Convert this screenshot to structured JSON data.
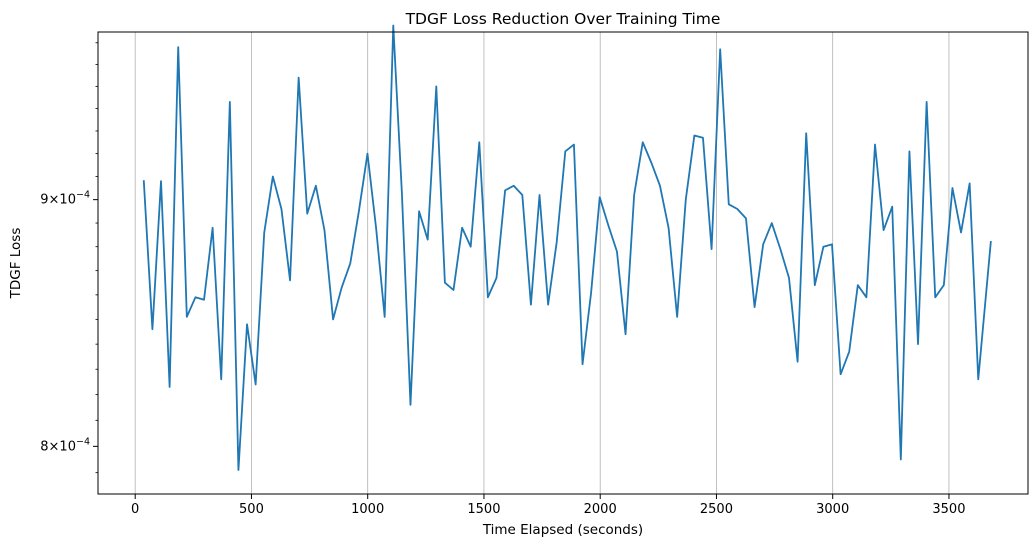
{
  "chart_data": {
    "type": "line",
    "title": "TDGF Loss Reduction Over Training Time",
    "xlabel": "Time Elapsed (seconds)",
    "ylabel": "TDGF Loss",
    "yscale": "log",
    "xlim": [
      -160,
      3840
    ],
    "ylim": [
      0.000782,
      0.000975
    ],
    "grid": "vertical",
    "line_color": "#1f77b4",
    "x_ticks": [
      {
        "value": 0,
        "label": "0"
      },
      {
        "value": 500,
        "label": "500"
      },
      {
        "value": 1000,
        "label": "1000"
      },
      {
        "value": 1500,
        "label": "1500"
      },
      {
        "value": 2000,
        "label": "2000"
      },
      {
        "value": 2500,
        "label": "2500"
      },
      {
        "value": 3000,
        "label": "3000"
      },
      {
        "value": 3500,
        "label": "3500"
      }
    ],
    "y_ticks": [
      {
        "value": 0.0008,
        "mantissa": "8",
        "base": "10",
        "exponent": "−4"
      },
      {
        "value": 0.0009,
        "mantissa": "9",
        "base": "10",
        "exponent": "−4"
      }
    ],
    "series": [
      {
        "x": [
          37,
          74,
          111,
          148,
          185,
          222,
          259,
          296,
          333,
          370,
          407,
          444,
          481,
          518,
          555,
          592,
          629,
          666,
          703,
          740,
          777,
          814,
          851,
          888,
          925,
          962,
          999,
          1036,
          1073,
          1110,
          1147,
          1184,
          1221,
          1258,
          1295,
          1332,
          1369,
          1406,
          1443,
          1480,
          1517,
          1554,
          1591,
          1628,
          1665,
          1702,
          1739,
          1776,
          1813,
          1850,
          1887,
          1924,
          1961,
          1998,
          2035,
          2072,
          2109,
          2146,
          2183,
          2220,
          2257,
          2294,
          2331,
          2368,
          2405,
          2442,
          2479,
          2516,
          2553,
          2590,
          2627,
          2664,
          2701,
          2738,
          2775,
          2812,
          2849,
          2886,
          2923,
          2960,
          2997,
          3034,
          3071,
          3108,
          3145,
          3182,
          3219,
          3256,
          3293,
          3330,
          3367,
          3404,
          3441,
          3478,
          3515,
          3552,
          3589,
          3626,
          3663,
          3680
        ],
        "y": [
          0.000908,
          0.000846,
          0.000908,
          0.000823,
          0.000968,
          0.000851,
          0.000859,
          0.000858,
          0.000888,
          0.000826,
          0.000943,
          0.000791,
          0.000848,
          0.000824,
          0.000886,
          0.00091,
          0.000896,
          0.000866,
          0.000954,
          0.000894,
          0.000906,
          0.000887,
          0.00085,
          0.000863,
          0.000873,
          0.000895,
          0.00092,
          0.000888,
          0.000851,
          0.000978,
          0.000903,
          0.000816,
          0.000895,
          0.000883,
          0.00095,
          0.000865,
          0.000862,
          0.000888,
          0.00088,
          0.000925,
          0.000859,
          0.000867,
          0.000904,
          0.000906,
          0.000902,
          0.000856,
          0.000902,
          0.000856,
          0.000882,
          0.000921,
          0.000924,
          0.000832,
          0.000861,
          0.000901,
          0.000889,
          0.000878,
          0.000844,
          0.000902,
          0.000925,
          0.000916,
          0.000906,
          0.000888,
          0.000851,
          0.0009,
          0.000928,
          0.000927,
          0.000879,
          0.000967,
          0.000898,
          0.000896,
          0.000892,
          0.000855,
          0.000881,
          0.00089,
          0.000879,
          0.000867,
          0.000833,
          0.000929,
          0.000864,
          0.00088,
          0.000881,
          0.000828,
          0.000837,
          0.000864,
          0.000859,
          0.000924,
          0.000887,
          0.000897,
          0.000795,
          0.000921,
          0.00084,
          0.000943,
          0.000859,
          0.000864,
          0.000905,
          0.000886,
          0.000907,
          0.000826,
          0.000864,
          0.000882
        ]
      }
    ]
  }
}
